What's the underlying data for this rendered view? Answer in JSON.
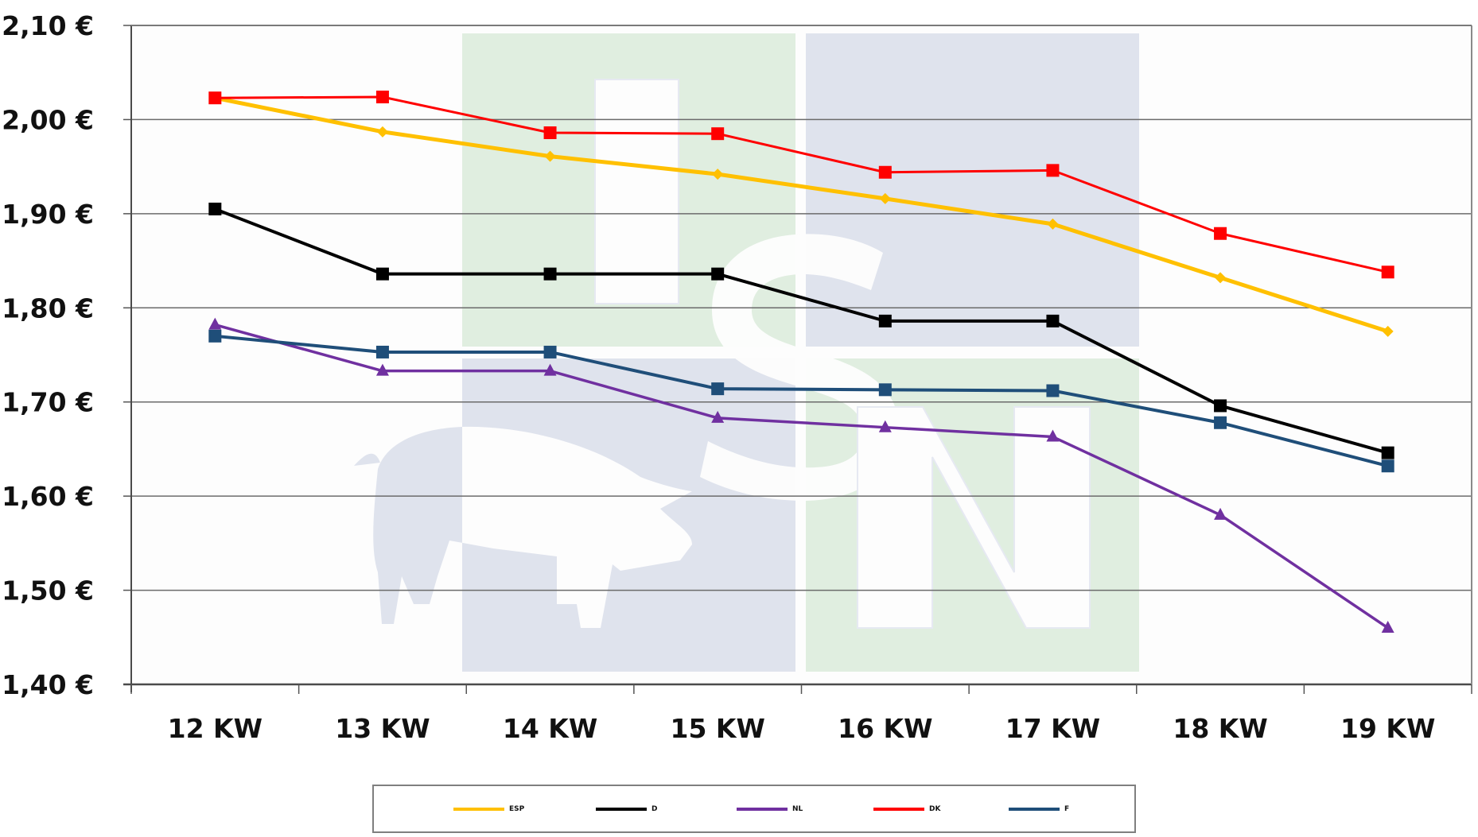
{
  "chart_data": {
    "type": "line",
    "title": "",
    "xlabel": "",
    "ylabel": "",
    "categories": [
      "12 KW",
      "13 KW",
      "14 KW",
      "15 KW",
      "16 KW",
      "17 KW",
      "18 KW",
      "19 KW"
    ],
    "y_ticks": [
      "2,10 €",
      "2,00 €",
      "1,90 €",
      "1,80 €",
      "1,70 €",
      "1,60 €",
      "1,50 €",
      "1,40 €"
    ],
    "ylim": [
      1.4,
      2.1
    ],
    "grid": true,
    "legend_position": "bottom",
    "series": [
      {
        "name": "ESP",
        "color": "#FFC000",
        "marker": "diamond",
        "values": [
          2.023,
          1.987,
          1.961,
          1.942,
          1.916,
          1.889,
          1.832,
          1.775
        ]
      },
      {
        "name": "D",
        "color": "#000000",
        "marker": "square",
        "values": [
          1.905,
          1.836,
          1.836,
          1.836,
          1.786,
          1.786,
          1.696,
          1.646
        ]
      },
      {
        "name": "NL",
        "color": "#7030A0",
        "marker": "triangle",
        "values": [
          1.782,
          1.733,
          1.733,
          1.683,
          1.673,
          1.663,
          1.58,
          1.46
        ]
      },
      {
        "name": "DK",
        "color": "#FF0000",
        "marker": "square",
        "values": [
          2.023,
          2.024,
          1.986,
          1.985,
          1.944,
          1.946,
          1.879,
          1.838
        ]
      },
      {
        "name": "F",
        "color": "#1F4E79",
        "marker": "square",
        "values": [
          1.77,
          1.753,
          1.753,
          1.714,
          1.713,
          1.712,
          1.678,
          1.632
        ]
      }
    ]
  },
  "watermark": {
    "label": "ISN",
    "colors": {
      "green": "#E0EEE0",
      "blue": "#DFE3ED"
    }
  },
  "legend": {
    "items": [
      {
        "label": "ESP",
        "color": "#FFC000"
      },
      {
        "label": "D",
        "color": "#000000"
      },
      {
        "label": "NL",
        "color": "#7030A0"
      },
      {
        "label": "DK",
        "color": "#FF0000"
      },
      {
        "label": "F",
        "color": "#1F4E79"
      }
    ]
  }
}
